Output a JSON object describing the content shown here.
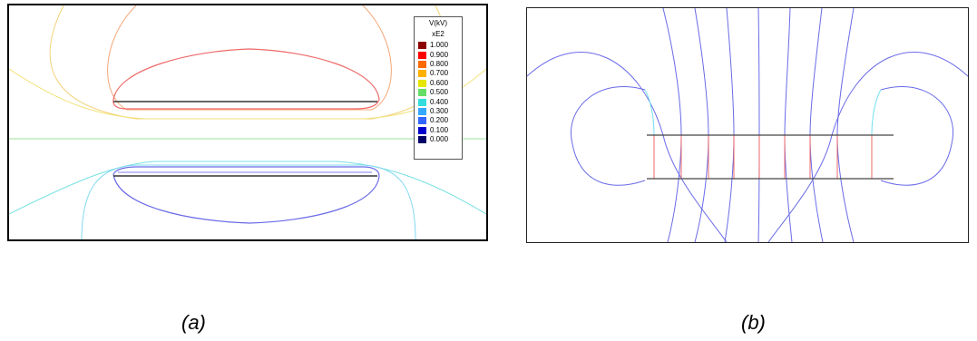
{
  "panels": [
    {
      "caption": "(a)",
      "legend": {
        "title_line1": "V(kV)",
        "title_line2": "xE2",
        "entries": [
          {
            "label": "1.000",
            "color": "#8b0000"
          },
          {
            "label": "0.900",
            "color": "#ff0000"
          },
          {
            "label": "0.800",
            "color": "#ff6a00"
          },
          {
            "label": "0.700",
            "color": "#ffb000"
          },
          {
            "label": "0.600",
            "color": "#e6e600"
          },
          {
            "label": "0.500",
            "color": "#66dd66"
          },
          {
            "label": "0.400",
            "color": "#33dddd"
          },
          {
            "label": "0.300",
            "color": "#33aaff"
          },
          {
            "label": "0.200",
            "color": "#3366ff"
          },
          {
            "label": "0.100",
            "color": "#0000cc"
          },
          {
            "label": "0.000",
            "color": "#000066"
          }
        ]
      }
    },
    {
      "caption": "(b)"
    }
  ],
  "colors": {
    "red_contour": "#ee6a6a",
    "orange_contour": "#f4a060",
    "yellow_contour": "#f0d060",
    "green_contour": "#90e090",
    "cyan_contour": "#70e0e0",
    "blue_contour": "#6a6ae8",
    "electrode": "#333333"
  }
}
